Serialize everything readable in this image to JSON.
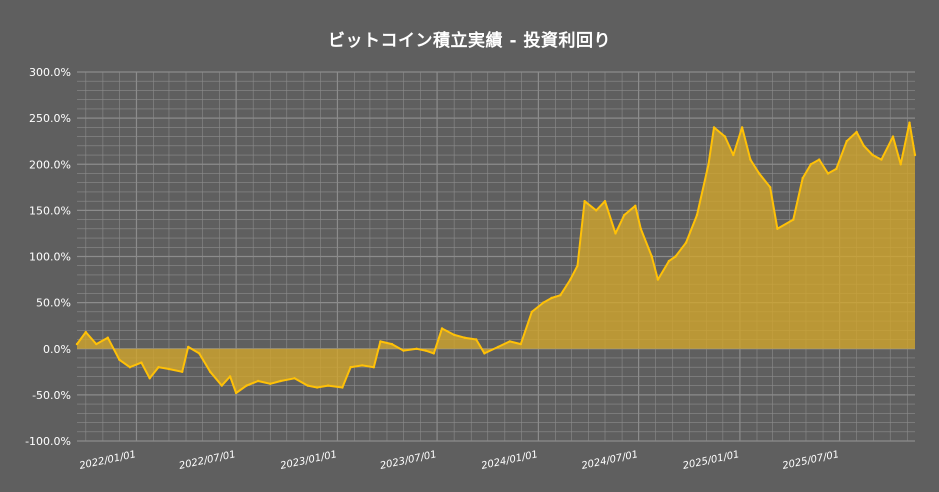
{
  "chart_data": {
    "type": "area",
    "title": "ビットコイン積立実績  -  投資利回り",
    "xlabel": "",
    "ylabel": "",
    "ylim": [
      -100,
      300
    ],
    "y_ticks": [
      "300.0%",
      "250.0%",
      "200.0%",
      "150.0%",
      "100.0%",
      "50.0%",
      "0.0%",
      "-50.0%",
      "-100.0%"
    ],
    "x_ticks": [
      "2022/01/01",
      "2022/07/01",
      "2023/01/01",
      "2023/07/01",
      "2024/01/01",
      "2024/07/01",
      "2025/01/01",
      "2025/07/01"
    ],
    "x_range": [
      "2021/09/15",
      "2025/11/15"
    ],
    "grid": true,
    "legend": "none",
    "colors": {
      "line": "#ffc107",
      "fill": "#d4a62a",
      "background": "#5f5f5f",
      "grid": "#8c8c8c"
    },
    "series": [
      {
        "x": [
          "2021/09/15",
          "2021/10/01",
          "2021/10/20",
          "2021/11/10",
          "2021/12/01",
          "2021/12/20",
          "2022/01/10",
          "2022/01/25",
          "2022/02/10",
          "2022/03/01",
          "2022/03/25",
          "2022/04/05",
          "2022/04/25",
          "2022/05/15",
          "2022/06/05",
          "2022/06/20",
          "2022/07/01",
          "2022/07/20",
          "2022/08/10",
          "2022/09/01",
          "2022/09/20",
          "2022/10/15",
          "2022/11/08",
          "2022/11/25",
          "2022/12/15",
          "2023/01/10",
          "2023/01/25",
          "2023/02/15",
          "2023/03/08",
          "2023/03/20",
          "2023/04/10",
          "2023/05/01",
          "2023/05/25",
          "2023/06/10",
          "2023/06/25",
          "2023/07/10",
          "2023/08/01",
          "2023/08/20",
          "2023/09/10",
          "2023/09/25",
          "2023/10/20",
          "2023/11/10",
          "2023/11/30",
          "2023/12/20",
          "2024/01/10",
          "2024/01/25",
          "2024/02/10",
          "2024/02/28",
          "2024/03/12",
          "2024/03/25",
          "2024/04/15",
          "2024/05/01",
          "2024/05/20",
          "2024/06/05",
          "2024/06/25",
          "2024/07/05",
          "2024/07/25",
          "2024/08/05",
          "2024/08/25",
          "2024/09/06",
          "2024/09/25",
          "2024/10/15",
          "2024/11/05",
          "2024/11/15",
          "2024/12/05",
          "2024/12/20",
          "2025/01/05",
          "2025/01/20",
          "2025/02/05",
          "2025/02/25",
          "2025/03/10",
          "2025/04/08",
          "2025/04/25",
          "2025/05/10",
          "2025/05/25",
          "2025/06/10",
          "2025/06/25",
          "2025/07/14",
          "2025/08/01",
          "2025/08/14",
          "2025/08/30",
          "2025/09/15",
          "2025/10/06",
          "2025/10/20",
          "2025/11/05",
          "2025/11/15"
        ],
        "values": [
          5,
          18,
          5,
          12,
          -12,
          -20,
          -15,
          -32,
          -20,
          -22,
          -25,
          2,
          -5,
          -25,
          -40,
          -30,
          -48,
          -40,
          -35,
          -38,
          -35,
          -32,
          -40,
          -42,
          -40,
          -42,
          -20,
          -18,
          -20,
          8,
          5,
          -2,
          0,
          -2,
          -5,
          22,
          15,
          12,
          10,
          -5,
          2,
          8,
          5,
          40,
          50,
          55,
          58,
          75,
          90,
          160,
          150,
          160,
          125,
          145,
          155,
          130,
          100,
          75,
          95,
          100,
          115,
          145,
          200,
          240,
          230,
          210,
          240,
          205,
          190,
          175,
          130,
          140,
          185,
          200,
          205,
          190,
          195,
          225,
          235,
          220,
          210,
          205,
          230,
          200,
          245,
          210
        ]
      }
    ]
  }
}
